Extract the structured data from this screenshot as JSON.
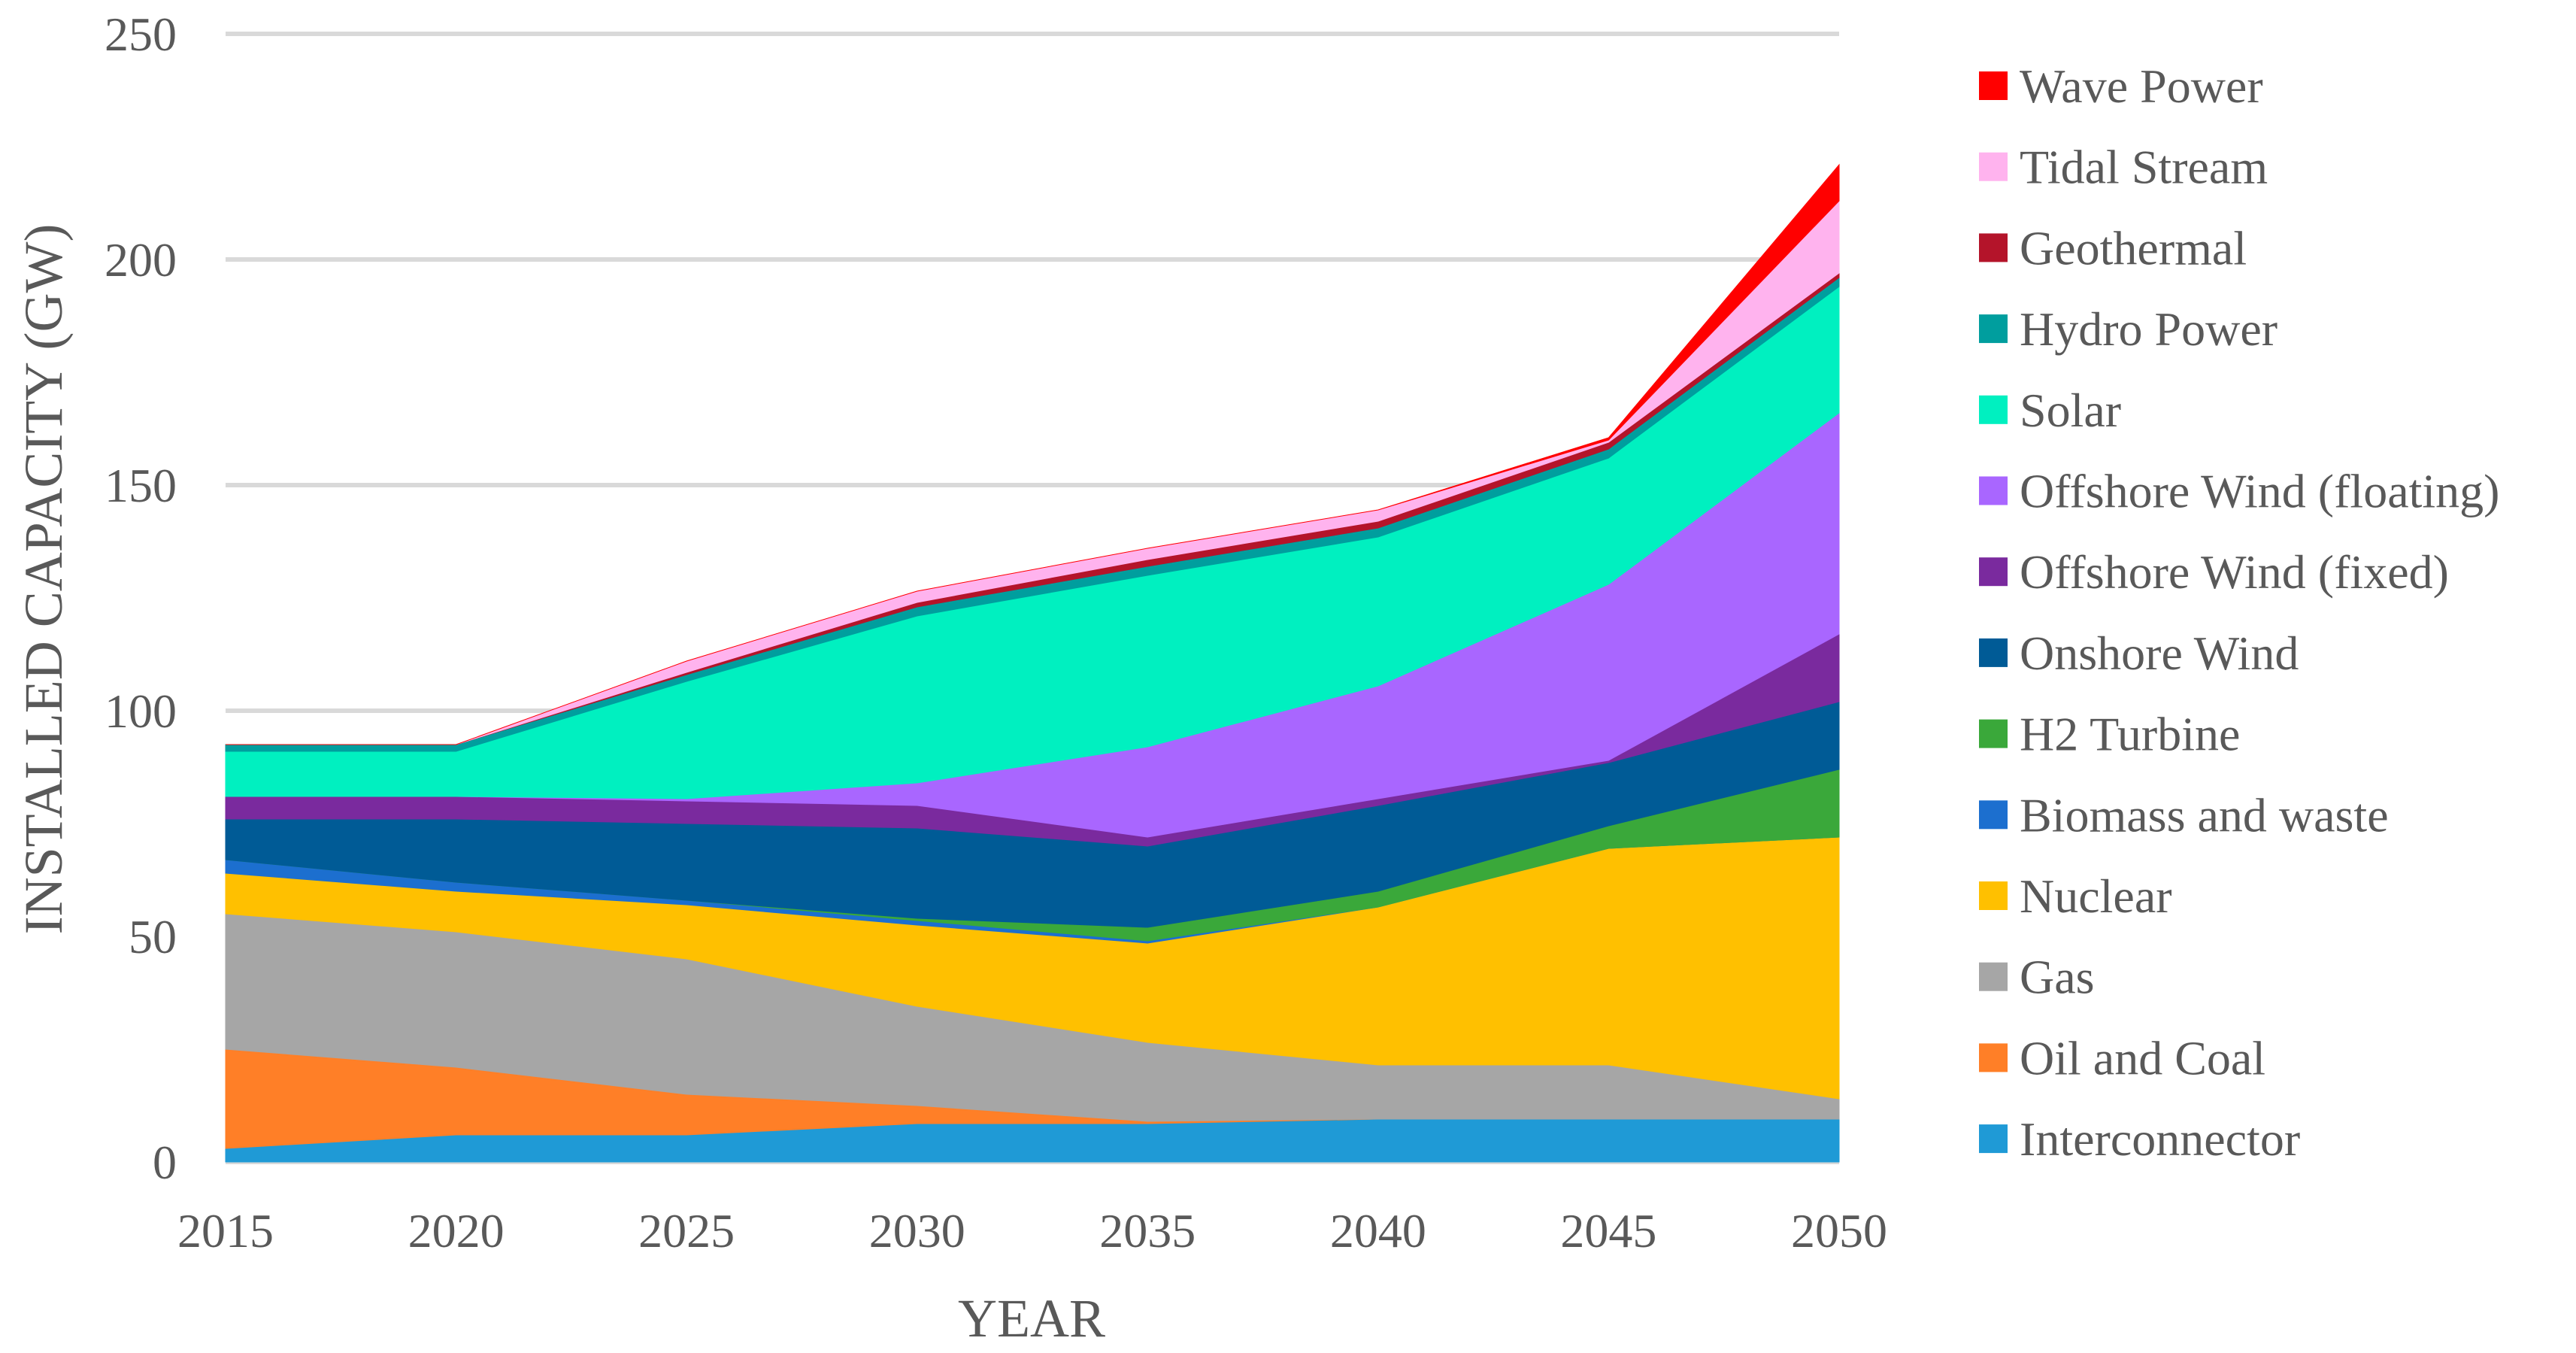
{
  "chart_data": {
    "type": "area",
    "stacked": true,
    "title": "",
    "xlabel": "YEAR",
    "ylabel": "INSTALLED CAPACITY (GW)",
    "x": [
      2015,
      2020,
      2025,
      2030,
      2035,
      2040,
      2045,
      2050
    ],
    "ylim": [
      0,
      250
    ],
    "yticks": [
      0,
      50,
      100,
      150,
      200,
      250
    ],
    "grid": true,
    "legend_position": "right",
    "series": [
      {
        "name": "Interconnector",
        "color": "#1f9ad6",
        "values": [
          3,
          6,
          6,
          8.5,
          8.5,
          9.5,
          9.5,
          9.5
        ]
      },
      {
        "name": "Oil and Coal",
        "color": "#ff7f27",
        "values": [
          22,
          15,
          9,
          4,
          0.5,
          0,
          0,
          0
        ]
      },
      {
        "name": "Gas",
        "color": "#a6a6a6",
        "values": [
          30,
          30,
          30,
          22,
          17.5,
          12,
          12,
          4.5
        ]
      },
      {
        "name": "Nuclear",
        "color": "#ffc000",
        "values": [
          9,
          9,
          12,
          18,
          22,
          35,
          48,
          58
        ]
      },
      {
        "name": "Biomass and waste",
        "color": "#1c6fcf",
        "values": [
          3,
          2,
          1,
          1,
          0.5,
          0,
          0,
          0
        ]
      },
      {
        "name": "H2 Turbine",
        "color": "#3aa83a",
        "values": [
          0,
          0,
          0,
          0.5,
          3,
          3.5,
          5,
          15
        ]
      },
      {
        "name": "Onshore Wind",
        "color": "#005b96",
        "values": [
          9,
          14,
          17,
          20,
          18,
          19,
          14,
          15
        ]
      },
      {
        "name": "Offshore Wind (fixed)",
        "color": "#7a2a9e",
        "values": [
          5,
          5,
          5,
          5,
          2,
          1.5,
          0.5,
          15
        ]
      },
      {
        "name": "Offshore Wind (floating)",
        "color": "#a966ff",
        "values": [
          0,
          0,
          0.5,
          5,
          20,
          25,
          39,
          49
        ]
      },
      {
        "name": "Solar",
        "color": "#00f0c0",
        "values": [
          10,
          10,
          26,
          37,
          38,
          33,
          28,
          28
        ]
      },
      {
        "name": "Hydro Power",
        "color": "#009e9e",
        "values": [
          1.5,
          1.5,
          1.5,
          2,
          2,
          2,
          2,
          2
        ]
      },
      {
        "name": "Geothermal",
        "color": "#b4142a",
        "values": [
          0,
          0,
          0.5,
          1,
          1.5,
          1.5,
          1.5,
          1
        ]
      },
      {
        "name": "Tidal Stream",
        "color": "#ffb3ee",
        "values": [
          0,
          0,
          2.5,
          2.5,
          2.5,
          2.5,
          0.5,
          16
        ]
      },
      {
        "name": "Wave Power",
        "color": "#ff0000",
        "values": [
          0,
          0,
          0,
          0,
          0,
          0,
          0.5,
          8
        ]
      }
    ]
  }
}
